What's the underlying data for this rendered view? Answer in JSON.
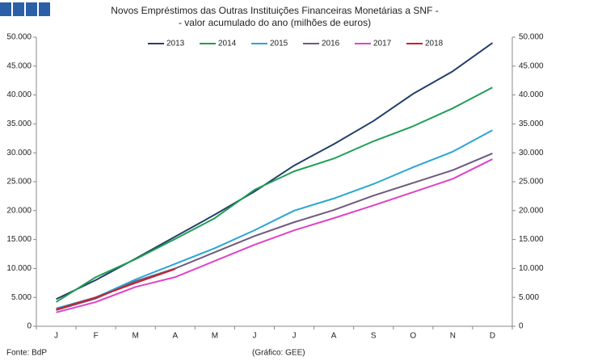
{
  "chart_data": {
    "type": "line",
    "title": [
      "Novos Empréstimos das Outras Instituições Financeiras Monetárias a SNF -",
      "- valor acumulado do ano (milhões de euros)"
    ],
    "categories": [
      "J",
      "F",
      "M",
      "A",
      "M",
      "J",
      "J",
      "A",
      "S",
      "O",
      "N",
      "D"
    ],
    "series": [
      {
        "name": "2013",
        "color": "#243f66",
        "values": [
          4700,
          8000,
          11700,
          15500,
          19300,
          23300,
          27800,
          31500,
          35500,
          40200,
          44100,
          49000
        ]
      },
      {
        "name": "2014",
        "color": "#1f9e55",
        "values": [
          4200,
          8500,
          11600,
          15100,
          18700,
          23600,
          26800,
          29000,
          32000,
          34600,
          37700,
          41300
        ]
      },
      {
        "name": "2015",
        "color": "#2aa6d4",
        "values": [
          3100,
          5000,
          8100,
          10800,
          13500,
          16600,
          20000,
          22100,
          24600,
          27500,
          30200,
          33900
        ]
      },
      {
        "name": "2016",
        "color": "#6e5a7e",
        "values": [
          2800,
          4800,
          7800,
          10000,
          12800,
          15600,
          18000,
          20100,
          22600,
          24800,
          27000,
          29900
        ]
      },
      {
        "name": "2017",
        "color": "#dd44c8",
        "values": [
          2400,
          4200,
          6800,
          8500,
          11300,
          14100,
          16600,
          18700,
          20900,
          23200,
          25500,
          28900
        ]
      },
      {
        "name": "2018",
        "color": "#c8202c",
        "values": [
          2900,
          5000,
          7500,
          9900,
          null,
          null,
          null,
          null,
          null,
          null,
          null,
          null
        ]
      }
    ],
    "ylim": [
      0,
      50000
    ],
    "yticks": [
      0,
      {
        "value": 5000,
        "label": "5.000"
      },
      {
        "value": 10000,
        "label": "10.000"
      },
      {
        "value": 15000,
        "label": "15.000"
      },
      {
        "value": 20000,
        "label": "20.000"
      },
      {
        "value": 25000,
        "label": "25.000"
      },
      {
        "value": 30000,
        "label": "30.000"
      },
      {
        "value": 35000,
        "label": "35.000"
      },
      {
        "value": 40000,
        "label": "40.000"
      },
      {
        "value": 45000,
        "label": "45.000"
      },
      {
        "value": 50000,
        "label": "50.000"
      }
    ],
    "y2lim": [
      0,
      50000
    ],
    "y2ticks": [
      0,
      {
        "value": 5000,
        "label": "5.000"
      },
      {
        "value": 10000,
        "label": "10.000"
      },
      {
        "value": 15000,
        "label": "15.000"
      },
      {
        "value": 20000,
        "label": "20.000"
      },
      {
        "value": 25000,
        "label": "25.000"
      },
      {
        "value": 30000,
        "label": "30.000"
      },
      {
        "value": 35000,
        "label": "35.000"
      },
      {
        "value": 40000,
        "label": "40.000"
      },
      {
        "value": 45000,
        "label": "45.000"
      },
      {
        "value": 50000,
        "label": "50.000"
      }
    ],
    "grid": false,
    "legend": "top",
    "source": "Fonte: BdP",
    "credit": "(Gráfico: GEE)"
  }
}
